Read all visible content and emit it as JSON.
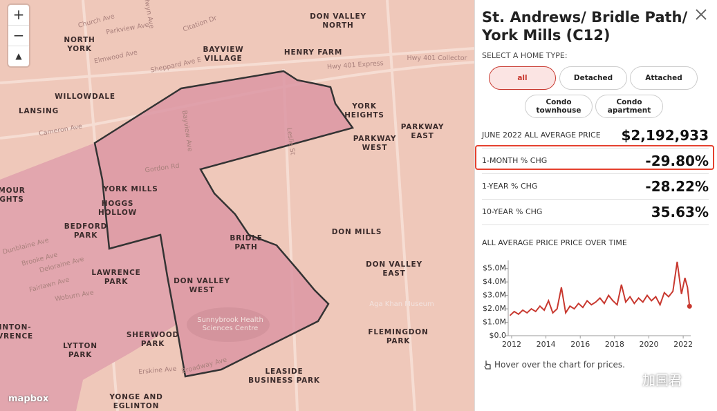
{
  "map": {
    "zoom_in": "+",
    "zoom_out": "−",
    "compass": "▲",
    "attribution": "mapbox",
    "neighborhoods": [
      [
        "DON VALLEY",
        "NORTH"
      ],
      [
        "NORTH",
        "YORK"
      ],
      [
        "BAYVIEW",
        "VILLAGE"
      ],
      [
        "HENRY FARM"
      ],
      [
        "WILLOWDALE"
      ],
      [
        "LANSING"
      ],
      [
        "YORK",
        "HEIGHTS"
      ],
      [
        "PARKWAY",
        "EAST"
      ],
      [
        "PARKWAY",
        "WEST"
      ],
      [
        "YORK MILLS"
      ],
      [
        "HOGGS",
        "HOLLOW"
      ],
      [
        "BEDFORD",
        "PARK"
      ],
      [
        "MOUR",
        "GHTS"
      ],
      [
        "BRIDLE",
        "PATH"
      ],
      [
        "DON MILLS"
      ],
      [
        "DON VALLEY",
        "EAST"
      ],
      [
        "LAWRENCE",
        "PARK"
      ],
      [
        "DON VALLEY",
        "WEST"
      ],
      [
        "INTON-",
        "VRENCE"
      ],
      [
        "SHERWOOD",
        "PARK"
      ],
      [
        "FLEMINGDON",
        "PARK"
      ],
      [
        "LYTTON",
        "PARK"
      ],
      [
        "LEASIDE",
        "BUSINESS PARK"
      ],
      [
        "YONGE AND",
        "EGLINTON"
      ]
    ],
    "streets": [
      "Church Ave",
      "Parkview Ave",
      "Elmwood Ave",
      "Sheppard Ave E",
      "Hwy 401 Express",
      "Hwy 401 Collector",
      "Cameron Ave",
      "Gordon Rd",
      "Bayview Ave",
      "Leslie St",
      "Dunblaine Ave",
      "Brooke Ave",
      "Deloraine Ave",
      "Fairlawn Ave",
      "Woburn Ave",
      "Erskine Ave",
      "Broadway Ave",
      "Citation Dr",
      "Selwyn Ave"
    ],
    "places": [
      [
        "Sunnybrook Health",
        "Sciences Centre"
      ],
      [
        "Aga Khan Museum"
      ]
    ]
  },
  "panel": {
    "title": "St. Andrews/ Bridle Path/ York Mills (C12)",
    "select_label": "SELECT A HOME TYPE:",
    "home_types": [
      "all",
      "Detached",
      "Attached",
      "Condo townhouse",
      "Condo apartment"
    ],
    "stats": [
      {
        "label": "JUNE 2022 ALL AVERAGE PRICE",
        "value": "$2,192,933"
      },
      {
        "label": "1-MONTH % CHG",
        "value": "-29.80%"
      },
      {
        "label": "1-YEAR % CHG",
        "value": "-28.22%"
      },
      {
        "label": "10-YEAR % CHG",
        "value": "35.63%"
      }
    ],
    "chart_title": "ALL AVERAGE PRICE PRICE OVER TIME",
    "hint": "Hover over the chart for prices.",
    "watermark": "加国君"
  },
  "chart_data": {
    "type": "line",
    "x": [
      2011.9,
      2012.15,
      2012.4,
      2012.65,
      2012.9,
      2013.15,
      2013.4,
      2013.65,
      2013.9,
      2014.15,
      2014.4,
      2014.65,
      2014.9,
      2015.15,
      2015.4,
      2015.65,
      2015.9,
      2016.15,
      2016.4,
      2016.65,
      2016.9,
      2017.15,
      2017.4,
      2017.65,
      2017.9,
      2018.15,
      2018.4,
      2018.65,
      2018.9,
      2019.15,
      2019.4,
      2019.65,
      2019.9,
      2020.15,
      2020.4,
      2020.65,
      2020.9,
      2021.15,
      2021.4,
      2021.65,
      2021.9,
      2022.1,
      2022.25,
      2022.37
    ],
    "series": [
      {
        "name": "all",
        "color": "#c8382f",
        "values": [
          1.5,
          1.8,
          1.6,
          1.9,
          1.7,
          2.0,
          1.8,
          2.2,
          1.9,
          2.6,
          1.7,
          2.0,
          3.6,
          1.7,
          2.2,
          2.0,
          2.4,
          2.1,
          2.6,
          2.3,
          2.5,
          2.8,
          2.4,
          3.0,
          2.6,
          2.3,
          3.8,
          2.5,
          2.9,
          2.4,
          2.8,
          2.5,
          3.0,
          2.6,
          2.9,
          2.3,
          3.2,
          2.9,
          3.3,
          5.5,
          3.1,
          4.3,
          3.6,
          2.19
        ]
      }
    ],
    "xlim": [
      2011.8,
      2022.6
    ],
    "xticks": [
      2012,
      2014,
      2016,
      2018,
      2020,
      2022
    ],
    "ylim": [
      0,
      5.6
    ],
    "yticks": [
      {
        "value": 0,
        "label": "$0.0"
      },
      {
        "value": 1,
        "label": "$1.0M"
      },
      {
        "value": 2,
        "label": "$2.0M"
      },
      {
        "value": 3,
        "label": "$3.0M"
      },
      {
        "value": 4,
        "label": "$4.0M"
      },
      {
        "value": 5,
        "label": "$5.0M"
      }
    ]
  }
}
